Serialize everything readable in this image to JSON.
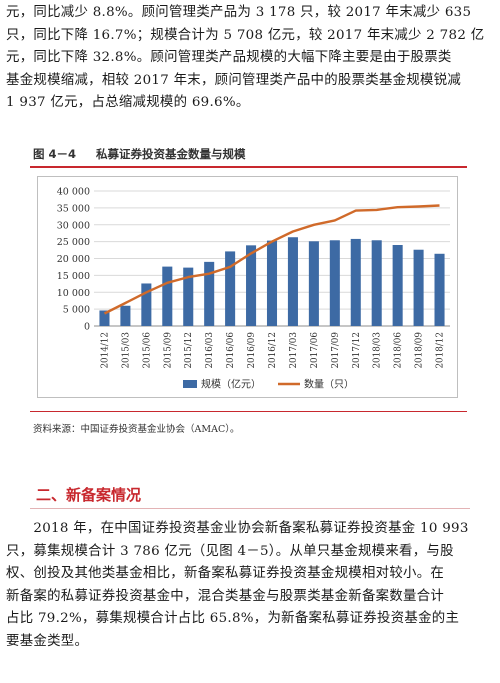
{
  "top_paragraph": {
    "lines": [
      "元，同比减少 8.8%。顾问管理类产品为 3 178 只，较 2017 年末减少 635",
      "只，同比下降 16.7%；规模合计为 5 708 亿元，较 2017 年末减少 2 782 亿",
      "元，同比下降 32.8%。顾问管理类产品规模的大幅下降主要是由于股票类",
      "基金规模缩减，相较 2017 年末，顾问管理类产品中的股票类基金规模锐减",
      "1 937 亿元，占总缩减规模的 69.6%。"
    ]
  },
  "figure": {
    "number": "图 4－4",
    "title": "私募证券投资基金数量与规模",
    "source": "资料来源：中国证券投资基金业协会（AMAC）。"
  },
  "chart_data": {
    "type": "bar",
    "categories": [
      "2014/12",
      "2015/03",
      "2015/06",
      "2015/09",
      "2015/12",
      "2016/03",
      "2016/06",
      "2016/09",
      "2016/12",
      "2017/03",
      "2017/06",
      "2017/09",
      "2017/12",
      "2018/03",
      "2018/06",
      "2018/09",
      "2018/12"
    ],
    "series": [
      {
        "name": "规模（亿元）",
        "kind": "bar",
        "color": "#3d6aa4",
        "values": [
          4600,
          6000,
          12600,
          17600,
          17300,
          19000,
          22100,
          23900,
          25300,
          26300,
          25100,
          25400,
          25800,
          25400,
          24000,
          22600,
          21400
        ]
      },
      {
        "name": "数量（只）",
        "kind": "line",
        "color": "#d06a2a",
        "values": [
          3700,
          6800,
          10000,
          12800,
          14500,
          15500,
          17500,
          21500,
          25000,
          28000,
          30000,
          31300,
          34200,
          34400,
          35200,
          35400,
          35700
        ]
      }
    ],
    "ylim": [
      0,
      40000
    ],
    "yticks": [
      0,
      5000,
      10000,
      15000,
      20000,
      25000,
      30000,
      35000,
      40000
    ],
    "ytick_labels": [
      "0",
      "5 000",
      "10 000",
      "15 000",
      "20 000",
      "25 000",
      "30 000",
      "35 000",
      "40 000"
    ],
    "grid": true,
    "legend_position": "bottom"
  },
  "section": {
    "heading": "二、新备案情况"
  },
  "bottom_paragraph": {
    "lines": [
      "　　2018 年，在中国证券投资基金业协会新备案私募证券投资基金 10 993",
      "只，募集规模合计 3 786 亿元（见图 4－5）。从单只基金规模来看，与股",
      "权、创投及其他类基金相比，新备案私募证券投资基金规模相对较小。在",
      "新备案的私募证券投资基金中，混合类基金与股票类基金新备案数量合计",
      "占比 79.2%，募集规模合计占比 65.8%，为新备案私募证券投资基金的主",
      "要基金类型。"
    ]
  }
}
